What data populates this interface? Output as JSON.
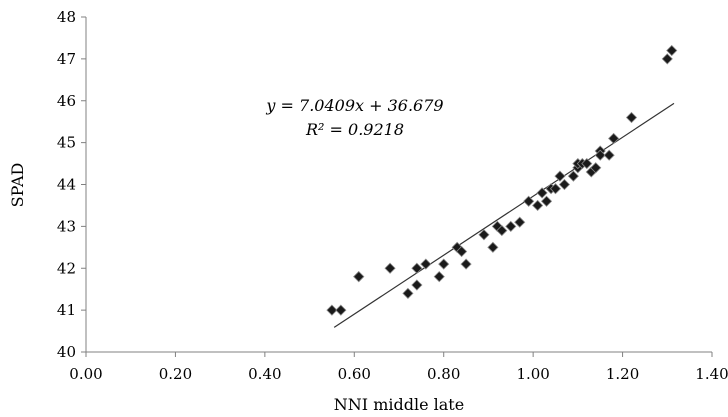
{
  "chart_data": {
    "type": "scatter",
    "title": "",
    "xlabel": "NNI middle late",
    "ylabel": "SPAD",
    "xlim": [
      0,
      1.4
    ],
    "ylim": [
      40,
      48
    ],
    "x_ticks": [
      "0.00",
      "0.20",
      "0.40",
      "0.60",
      "0.80",
      "1.00",
      "1.20",
      "1.40"
    ],
    "y_ticks": [
      "40",
      "41",
      "42",
      "43",
      "44",
      "45",
      "46",
      "47",
      "48"
    ],
    "grid": false,
    "legend": "none",
    "marker": "diamond",
    "marker_color": "#1a1a1a",
    "points": [
      {
        "x": 0.55,
        "y": 41.0
      },
      {
        "x": 0.57,
        "y": 41.0
      },
      {
        "x": 0.61,
        "y": 41.8
      },
      {
        "x": 0.61,
        "y": 41.8
      },
      {
        "x": 0.68,
        "y": 42.0
      },
      {
        "x": 0.72,
        "y": 41.4
      },
      {
        "x": 0.74,
        "y": 41.6
      },
      {
        "x": 0.74,
        "y": 42.0
      },
      {
        "x": 0.76,
        "y": 42.1
      },
      {
        "x": 0.79,
        "y": 41.8
      },
      {
        "x": 0.8,
        "y": 42.1
      },
      {
        "x": 0.83,
        "y": 42.5
      },
      {
        "x": 0.84,
        "y": 42.4
      },
      {
        "x": 0.85,
        "y": 42.1
      },
      {
        "x": 0.89,
        "y": 42.8
      },
      {
        "x": 0.91,
        "y": 42.5
      },
      {
        "x": 0.92,
        "y": 43.0
      },
      {
        "x": 0.93,
        "y": 42.9
      },
      {
        "x": 0.95,
        "y": 43.0
      },
      {
        "x": 0.97,
        "y": 43.1
      },
      {
        "x": 0.99,
        "y": 43.6
      },
      {
        "x": 1.01,
        "y": 43.5
      },
      {
        "x": 1.02,
        "y": 43.8
      },
      {
        "x": 1.03,
        "y": 43.6
      },
      {
        "x": 1.04,
        "y": 43.9
      },
      {
        "x": 1.05,
        "y": 43.9
      },
      {
        "x": 1.06,
        "y": 44.2
      },
      {
        "x": 1.07,
        "y": 44.0
      },
      {
        "x": 1.09,
        "y": 44.2
      },
      {
        "x": 1.1,
        "y": 44.4
      },
      {
        "x": 1.1,
        "y": 44.5
      },
      {
        "x": 1.11,
        "y": 44.5
      },
      {
        "x": 1.12,
        "y": 44.5
      },
      {
        "x": 1.13,
        "y": 44.3
      },
      {
        "x": 1.14,
        "y": 44.4
      },
      {
        "x": 1.15,
        "y": 44.8
      },
      {
        "x": 1.15,
        "y": 44.7
      },
      {
        "x": 1.17,
        "y": 44.7
      },
      {
        "x": 1.18,
        "y": 45.1
      },
      {
        "x": 1.22,
        "y": 45.6
      },
      {
        "x": 1.3,
        "y": 47.0
      },
      {
        "x": 1.31,
        "y": 47.2
      }
    ],
    "trendline": {
      "slope": 7.0409,
      "intercept": 36.679,
      "x_range": [
        0.555,
        1.315
      ],
      "color": "#333333"
    },
    "annotations": {
      "equation": "y = 7.0409x + 36.679",
      "r_squared": "R² = 0.9218"
    }
  }
}
